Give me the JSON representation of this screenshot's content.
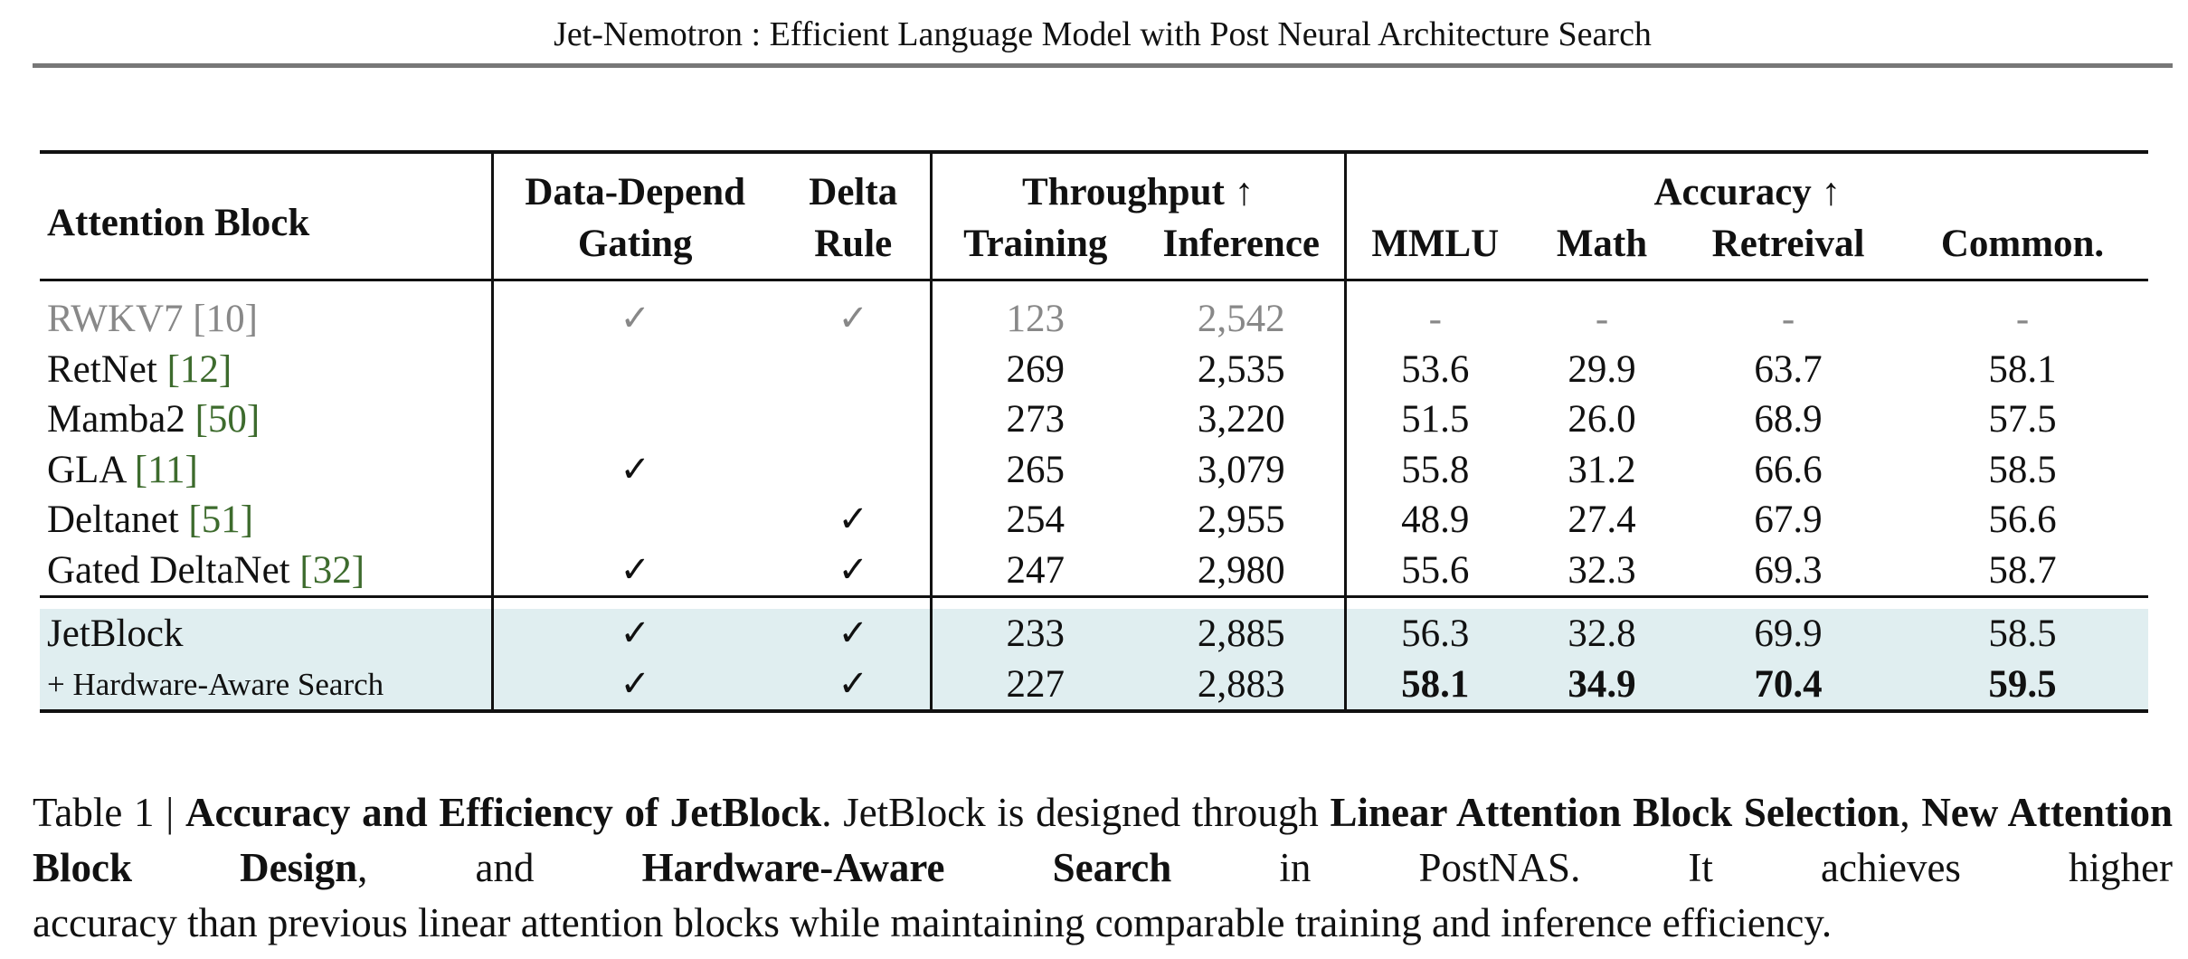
{
  "header": {
    "title": "Jet-Nemotron : Efficient Language Model with Post Neural Architecture Search"
  },
  "table": {
    "headers": {
      "attention_block": "Attention Block",
      "data_depend_1": "Data-Depend",
      "data_depend_2": "Gating",
      "delta_1": "Delta",
      "delta_2": "Rule",
      "throughput": "Throughput ↑",
      "training": "Training",
      "inference": "Inference",
      "accuracy": "Accuracy ↑",
      "mmlu": "MMLU",
      "math": "Math",
      "retrieval": "Retreival",
      "common": "Common."
    },
    "rows": [
      {
        "name": "RWKV7 ",
        "cite": "[10]",
        "gating": "✓",
        "delta": "✓",
        "training": "123",
        "inference": "2,542",
        "mmlu": "-",
        "math": "-",
        "retrieval": "-",
        "common": "-"
      },
      {
        "name": "RetNet ",
        "cite": "[12]",
        "gating": "",
        "delta": "",
        "training": "269",
        "inference": "2,535",
        "mmlu": "53.6",
        "math": "29.9",
        "retrieval": "63.7",
        "common": "58.1"
      },
      {
        "name": "Mamba2 ",
        "cite": "[50]",
        "gating": "",
        "delta": "",
        "training": "273",
        "inference": "3,220",
        "mmlu": "51.5",
        "math": "26.0",
        "retrieval": "68.9",
        "common": "57.5"
      },
      {
        "name": "GLA ",
        "cite": "[11]",
        "gating": "✓",
        "delta": "",
        "training": "265",
        "inference": "3,079",
        "mmlu": "55.8",
        "math": "31.2",
        "retrieval": "66.6",
        "common": "58.5"
      },
      {
        "name": "Deltanet ",
        "cite": "[51]",
        "gating": "",
        "delta": "✓",
        "training": "254",
        "inference": "2,955",
        "mmlu": "48.9",
        "math": "27.4",
        "retrieval": "67.9",
        "common": "56.6"
      },
      {
        "name": "Gated DeltaNet ",
        "cite": "[32]",
        "gating": "✓",
        "delta": "✓",
        "training": "247",
        "inference": "2,980",
        "mmlu": "55.6",
        "math": "32.3",
        "retrieval": "69.3",
        "common": "58.7"
      }
    ],
    "ours": [
      {
        "name": "JetBlock",
        "gating": "✓",
        "delta": "✓",
        "training": "233",
        "inference": "2,885",
        "mmlu": "56.3",
        "math": "32.8",
        "retrieval": "69.9",
        "common": "58.5"
      },
      {
        "name": "+ Hardware-Aware Search",
        "gating": "✓",
        "delta": "✓",
        "training": "227",
        "inference": "2,883",
        "mmlu": "58.1",
        "math": "34.9",
        "retrieval": "70.4",
        "common": "59.5"
      }
    ]
  },
  "caption": {
    "label": "Table 1 | ",
    "title": "Accuracy and Efficiency of JetBlock",
    "t1": ". JetBlock is designed through ",
    "b1": "Linear Attention Block Selection",
    "t2": ", ",
    "b2": "New Attention Block Design",
    "t3": ", and ",
    "b3": "Hardware-Aware Search",
    "t4": " in PostNAS. It achieves higher ",
    "t5": "accuracy than previous linear attention blocks while maintaining comparable training and inference efficiency."
  }
}
